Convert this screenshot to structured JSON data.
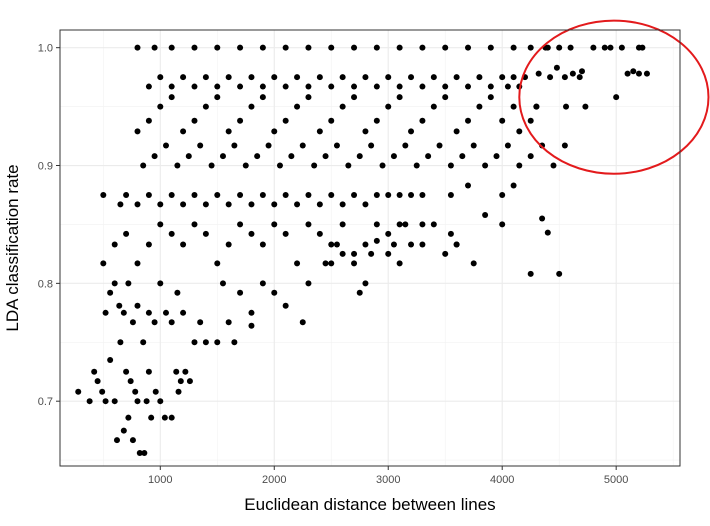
{
  "chart_data": {
    "type": "scatter",
    "title": "",
    "xlabel": "Euclidean distance between lines",
    "ylabel": "LDA classification rate",
    "xlim": [
      120,
      5560
    ],
    "ylim": [
      0.645,
      1.015
    ],
    "xticks": [
      1000,
      2000,
      3000,
      4000,
      5000
    ],
    "xtick_labels": [
      "1000",
      "2000",
      "3000",
      "4000",
      "5000"
    ],
    "yticks": [
      0.7,
      0.8,
      0.9,
      1.0
    ],
    "ytick_labels": [
      "0.7",
      "0.8",
      "0.9",
      "1.0"
    ],
    "grid": true,
    "legend": "none",
    "marker_color": "#000000",
    "annotation": {
      "type": "circle",
      "color": "#e31a1c",
      "center": [
        4980,
        0.958
      ],
      "radius_x": 830,
      "radius_y": 0.065
    },
    "points": [
      [
        280,
        0.708
      ],
      [
        380,
        0.7
      ],
      [
        420,
        0.725
      ],
      [
        450,
        0.717
      ],
      [
        490,
        0.708
      ],
      [
        520,
        0.7
      ],
      [
        560,
        0.735
      ],
      [
        600,
        0.7
      ],
      [
        620,
        0.667
      ],
      [
        650,
        0.75
      ],
      [
        680,
        0.675
      ],
      [
        700,
        0.725
      ],
      [
        720,
        0.686
      ],
      [
        740,
        0.717
      ],
      [
        760,
        0.667
      ],
      [
        780,
        0.708
      ],
      [
        800,
        0.7
      ],
      [
        820,
        0.656
      ],
      [
        860,
        0.656
      ],
      [
        880,
        0.7
      ],
      [
        900,
        0.725
      ],
      [
        920,
        0.686
      ],
      [
        960,
        0.708
      ],
      [
        1000,
        0.7
      ],
      [
        1040,
        0.686
      ],
      [
        1100,
        0.686
      ],
      [
        1140,
        0.725
      ],
      [
        1180,
        0.717
      ],
      [
        1220,
        0.725
      ],
      [
        1260,
        0.717
      ],
      [
        1160,
        0.708
      ],
      [
        520,
        0.775
      ],
      [
        560,
        0.792
      ],
      [
        600,
        0.8
      ],
      [
        640,
        0.781
      ],
      [
        680,
        0.775
      ],
      [
        720,
        0.8
      ],
      [
        760,
        0.767
      ],
      [
        800,
        0.781
      ],
      [
        850,
        0.75
      ],
      [
        900,
        0.775
      ],
      [
        950,
        0.767
      ],
      [
        1000,
        0.8
      ],
      [
        1050,
        0.775
      ],
      [
        1100,
        0.767
      ],
      [
        1150,
        0.792
      ],
      [
        1200,
        0.775
      ],
      [
        1300,
        0.75
      ],
      [
        1350,
        0.767
      ],
      [
        1400,
        0.75
      ],
      [
        1500,
        0.75
      ],
      [
        1550,
        0.8
      ],
      [
        1600,
        0.767
      ],
      [
        1650,
        0.75
      ],
      [
        1700,
        0.792
      ],
      [
        1800,
        0.775
      ],
      [
        1900,
        0.8
      ],
      [
        2000,
        0.792
      ],
      [
        2100,
        0.781
      ],
      [
        2250,
        0.767
      ],
      [
        2300,
        0.8
      ],
      [
        2500,
        0.817
      ],
      [
        2600,
        0.825
      ],
      [
        2700,
        0.817
      ],
      [
        2800,
        0.8
      ],
      [
        2850,
        0.825
      ],
      [
        3000,
        0.825
      ],
      [
        3100,
        0.85
      ],
      [
        3200,
        0.833
      ],
      [
        3300,
        0.85
      ],
      [
        2450,
        0.817
      ],
      [
        2550,
        0.833
      ],
      [
        2900,
        0.836
      ],
      [
        3500,
        0.825
      ],
      [
        3600,
        0.833
      ],
      [
        2750,
        0.792
      ],
      [
        3100,
        0.817
      ],
      [
        1800,
        0.764
      ],
      [
        500,
        0.817
      ],
      [
        600,
        0.833
      ],
      [
        700,
        0.842
      ],
      [
        800,
        0.817
      ],
      [
        900,
        0.833
      ],
      [
        1000,
        0.85
      ],
      [
        1100,
        0.842
      ],
      [
        1200,
        0.833
      ],
      [
        1300,
        0.85
      ],
      [
        1400,
        0.842
      ],
      [
        1500,
        0.817
      ],
      [
        1600,
        0.833
      ],
      [
        1700,
        0.85
      ],
      [
        1800,
        0.842
      ],
      [
        1900,
        0.833
      ],
      [
        2000,
        0.85
      ],
      [
        2100,
        0.842
      ],
      [
        2200,
        0.817
      ],
      [
        2300,
        0.85
      ],
      [
        2400,
        0.842
      ],
      [
        2500,
        0.833
      ],
      [
        2600,
        0.85
      ],
      [
        2700,
        0.825
      ],
      [
        2800,
        0.833
      ],
      [
        2900,
        0.85
      ],
      [
        3000,
        0.842
      ],
      [
        3050,
        0.833
      ],
      [
        3150,
        0.85
      ],
      [
        3300,
        0.833
      ],
      [
        3400,
        0.85
      ],
      [
        3550,
        0.842
      ],
      [
        3600,
        0.833
      ],
      [
        3750,
        0.817
      ],
      [
        3850,
        0.858
      ],
      [
        4000,
        0.85
      ],
      [
        4250,
        0.808
      ],
      [
        4350,
        0.855
      ],
      [
        4400,
        0.843
      ],
      [
        4500,
        0.808
      ],
      [
        500,
        0.875
      ],
      [
        650,
        0.867
      ],
      [
        700,
        0.875
      ],
      [
        800,
        0.867
      ],
      [
        900,
        0.875
      ],
      [
        1000,
        0.867
      ],
      [
        1100,
        0.875
      ],
      [
        1200,
        0.867
      ],
      [
        1300,
        0.875
      ],
      [
        1400,
        0.867
      ],
      [
        1500,
        0.875
      ],
      [
        1600,
        0.867
      ],
      [
        1700,
        0.875
      ],
      [
        1800,
        0.867
      ],
      [
        1900,
        0.875
      ],
      [
        2000,
        0.867
      ],
      [
        2100,
        0.875
      ],
      [
        2200,
        0.867
      ],
      [
        2300,
        0.875
      ],
      [
        2400,
        0.867
      ],
      [
        2500,
        0.875
      ],
      [
        2600,
        0.867
      ],
      [
        2700,
        0.875
      ],
      [
        2800,
        0.867
      ],
      [
        2900,
        0.875
      ],
      [
        3000,
        0.875
      ],
      [
        3100,
        0.875
      ],
      [
        3200,
        0.875
      ],
      [
        3300,
        0.875
      ],
      [
        3550,
        0.875
      ],
      [
        3700,
        0.883
      ],
      [
        4000,
        0.875
      ],
      [
        4100,
        0.883
      ],
      [
        850,
        0.9
      ],
      [
        950,
        0.908
      ],
      [
        1050,
        0.917
      ],
      [
        1150,
        0.9
      ],
      [
        1250,
        0.908
      ],
      [
        1350,
        0.917
      ],
      [
        1450,
        0.9
      ],
      [
        1550,
        0.908
      ],
      [
        1650,
        0.917
      ],
      [
        1750,
        0.9
      ],
      [
        1850,
        0.908
      ],
      [
        1950,
        0.917
      ],
      [
        2050,
        0.9
      ],
      [
        2150,
        0.908
      ],
      [
        2250,
        0.917
      ],
      [
        2350,
        0.9
      ],
      [
        2450,
        0.908
      ],
      [
        2550,
        0.917
      ],
      [
        2650,
        0.9
      ],
      [
        2750,
        0.908
      ],
      [
        2850,
        0.917
      ],
      [
        2950,
        0.9
      ],
      [
        3050,
        0.908
      ],
      [
        3150,
        0.917
      ],
      [
        3250,
        0.9
      ],
      [
        3350,
        0.908
      ],
      [
        3450,
        0.917
      ],
      [
        3550,
        0.9
      ],
      [
        3650,
        0.908
      ],
      [
        3750,
        0.917
      ],
      [
        3850,
        0.9
      ],
      [
        3950,
        0.908
      ],
      [
        4050,
        0.917
      ],
      [
        4150,
        0.9
      ],
      [
        4250,
        0.908
      ],
      [
        4350,
        0.917
      ],
      [
        4450,
        0.9
      ],
      [
        4550,
        0.917
      ],
      [
        800,
        0.929
      ],
      [
        900,
        0.938
      ],
      [
        1000,
        0.95
      ],
      [
        1100,
        0.958
      ],
      [
        1200,
        0.929
      ],
      [
        1300,
        0.938
      ],
      [
        1400,
        0.95
      ],
      [
        1500,
        0.958
      ],
      [
        1600,
        0.929
      ],
      [
        1700,
        0.938
      ],
      [
        1800,
        0.95
      ],
      [
        1900,
        0.958
      ],
      [
        2000,
        0.929
      ],
      [
        2100,
        0.938
      ],
      [
        2200,
        0.95
      ],
      [
        2300,
        0.958
      ],
      [
        2400,
        0.929
      ],
      [
        2500,
        0.938
      ],
      [
        2600,
        0.95
      ],
      [
        2700,
        0.958
      ],
      [
        2800,
        0.929
      ],
      [
        2900,
        0.938
      ],
      [
        3000,
        0.95
      ],
      [
        3100,
        0.958
      ],
      [
        3200,
        0.929
      ],
      [
        3300,
        0.938
      ],
      [
        3400,
        0.95
      ],
      [
        3500,
        0.958
      ],
      [
        3600,
        0.929
      ],
      [
        3700,
        0.938
      ],
      [
        3800,
        0.95
      ],
      [
        3900,
        0.958
      ],
      [
        4000,
        0.938
      ],
      [
        4100,
        0.95
      ],
      [
        4150,
        0.929
      ],
      [
        4250,
        0.938
      ],
      [
        4300,
        0.95
      ],
      [
        900,
        0.967
      ],
      [
        1000,
        0.975
      ],
      [
        1100,
        0.967
      ],
      [
        1200,
        0.975
      ],
      [
        1300,
        0.967
      ],
      [
        1400,
        0.975
      ],
      [
        1500,
        0.967
      ],
      [
        1600,
        0.975
      ],
      [
        1700,
        0.967
      ],
      [
        1800,
        0.975
      ],
      [
        1900,
        0.967
      ],
      [
        2000,
        0.975
      ],
      [
        2100,
        0.967
      ],
      [
        2200,
        0.975
      ],
      [
        2300,
        0.967
      ],
      [
        2400,
        0.975
      ],
      [
        2500,
        0.967
      ],
      [
        2600,
        0.975
      ],
      [
        2700,
        0.967
      ],
      [
        2800,
        0.975
      ],
      [
        2900,
        0.967
      ],
      [
        3000,
        0.975
      ],
      [
        3100,
        0.967
      ],
      [
        3200,
        0.975
      ],
      [
        3300,
        0.967
      ],
      [
        3400,
        0.975
      ],
      [
        3500,
        0.967
      ],
      [
        3600,
        0.975
      ],
      [
        3700,
        0.967
      ],
      [
        3800,
        0.975
      ],
      [
        3900,
        0.967
      ],
      [
        4000,
        0.975
      ],
      [
        4050,
        0.967
      ],
      [
        4100,
        0.975
      ],
      [
        4150,
        0.967
      ],
      [
        4200,
        0.975
      ],
      [
        800,
        1.0
      ],
      [
        950,
        1.0
      ],
      [
        1100,
        1.0
      ],
      [
        1300,
        1.0
      ],
      [
        1500,
        1.0
      ],
      [
        1700,
        1.0
      ],
      [
        1900,
        1.0
      ],
      [
        2100,
        1.0
      ],
      [
        2300,
        1.0
      ],
      [
        2500,
        1.0
      ],
      [
        2700,
        1.0
      ],
      [
        2900,
        1.0
      ],
      [
        3100,
        1.0
      ],
      [
        3300,
        1.0
      ],
      [
        3500,
        1.0
      ],
      [
        3700,
        1.0
      ],
      [
        3900,
        1.0
      ],
      [
        4100,
        1.0
      ],
      [
        4250,
        1.0
      ],
      [
        4400,
        1.0
      ],
      [
        4500,
        1.0
      ],
      [
        4600,
        1.0
      ],
      [
        4800,
        1.0
      ],
      [
        4900,
        1.0
      ],
      [
        5050,
        1.0
      ],
      [
        5200,
        1.0
      ],
      [
        4320,
        0.978
      ],
      [
        4420,
        0.975
      ],
      [
        4480,
        0.983
      ],
      [
        4550,
        0.975
      ],
      [
        4620,
        0.978
      ],
      [
        4680,
        0.975
      ],
      [
        4700,
        0.98
      ],
      [
        4300,
        0.95
      ],
      [
        4560,
        0.95
      ],
      [
        4730,
        0.95
      ],
      [
        5000,
        0.958
      ],
      [
        5100,
        0.978
      ],
      [
        5150,
        0.98
      ],
      [
        5200,
        0.978
      ],
      [
        5270,
        0.978
      ],
      [
        5230,
        1.0
      ],
      [
        4380,
        1.0
      ],
      [
        4950,
        1.0
      ]
    ]
  }
}
